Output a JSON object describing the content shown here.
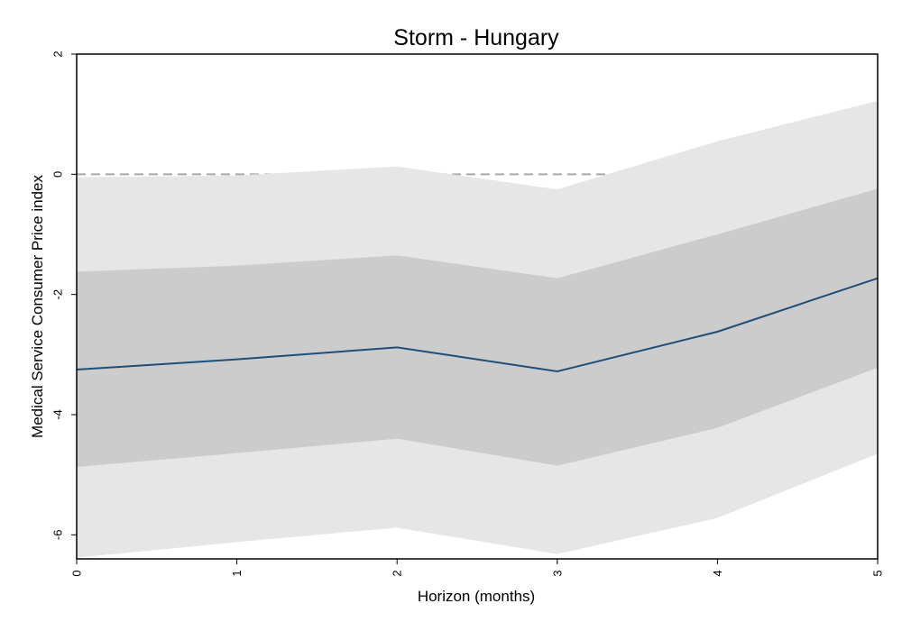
{
  "chart_data": {
    "type": "line",
    "title": "Storm - Hungary",
    "xlabel": "Horizon (months)",
    "ylabel": "Medical Service Consumer Price index",
    "x": [
      0,
      1,
      2,
      3,
      4,
      5
    ],
    "xlim": [
      0,
      5
    ],
    "ylim": [
      -6.4,
      2
    ],
    "x_ticks": [
      0,
      1,
      2,
      3,
      4,
      5
    ],
    "y_ticks": [
      -6,
      -4,
      -2,
      0,
      2
    ],
    "reference_line": 0,
    "series": [
      {
        "values": [
          -3.25,
          -3.08,
          -2.88,
          -3.28,
          -2.62,
          -1.73
        ]
      }
    ],
    "bands": [
      {
        "level": "outer",
        "lower": [
          -6.38,
          -6.12,
          -5.88,
          -6.32,
          -5.72,
          -4.65
        ],
        "upper": [
          -0.05,
          -0.02,
          0.13,
          -0.25,
          0.55,
          1.22
        ]
      },
      {
        "level": "inner",
        "lower": [
          -4.87,
          -4.64,
          -4.4,
          -4.85,
          -4.22,
          -3.22
        ],
        "upper": [
          -1.62,
          -1.52,
          -1.35,
          -1.73,
          -1.0,
          -0.24
        ]
      }
    ],
    "colors": {
      "line": "#1f4e79",
      "outer_band": "#e6e6e6",
      "inner_band": "#cccccc",
      "reference": "#a6a6a6"
    }
  }
}
